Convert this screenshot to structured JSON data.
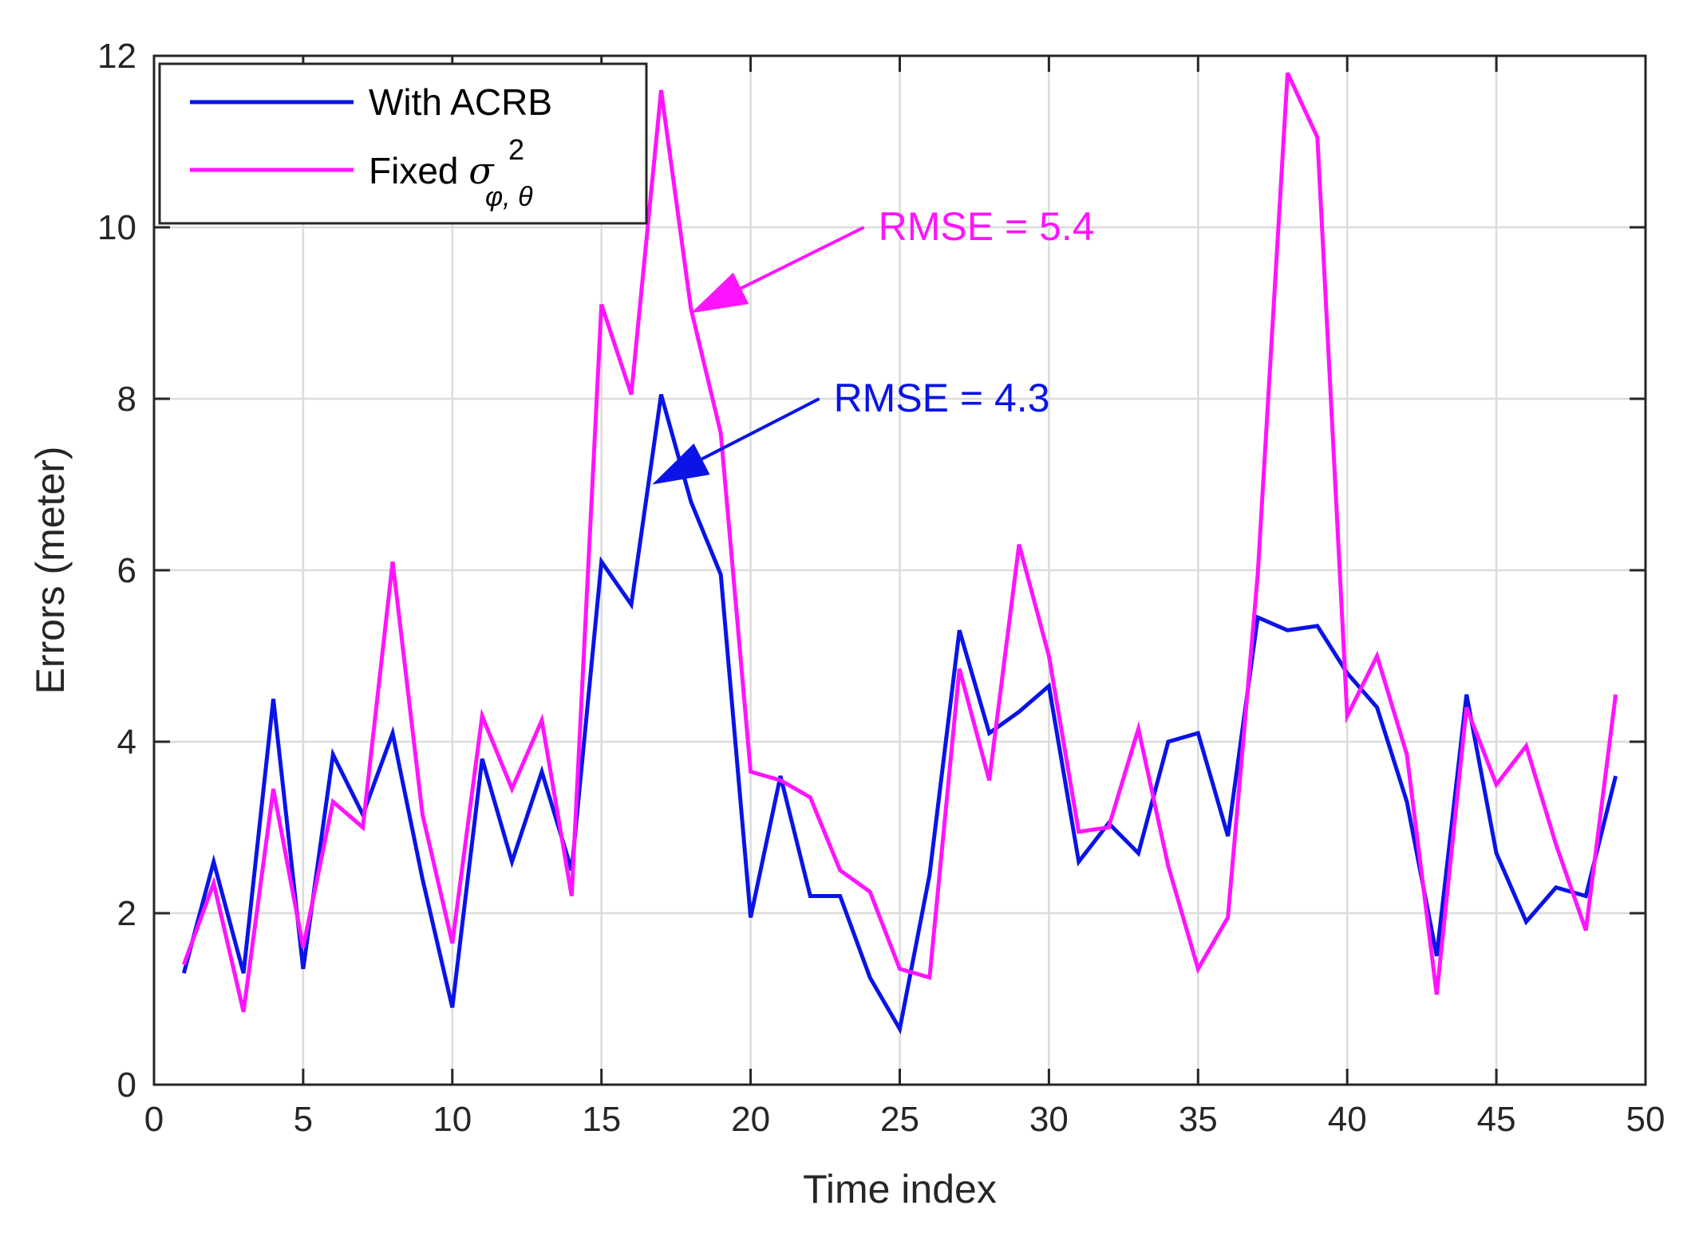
{
  "chart_data": {
    "type": "line",
    "title": "",
    "xlabel": "Time index",
    "ylabel": "Errors (meter)",
    "xlim": [
      0,
      50
    ],
    "ylim": [
      0,
      12
    ],
    "xticks": [
      0,
      5,
      10,
      15,
      20,
      25,
      30,
      35,
      40,
      45,
      50
    ],
    "yticks": [
      0,
      2,
      4,
      6,
      8,
      10,
      12
    ],
    "grid": true,
    "legend_position": "top-left",
    "x": [
      1,
      2,
      3,
      4,
      5,
      6,
      7,
      8,
      9,
      10,
      11,
      12,
      13,
      14,
      15,
      16,
      17,
      18,
      19,
      20,
      21,
      22,
      23,
      24,
      25,
      26,
      27,
      28,
      29,
      30,
      31,
      32,
      33,
      34,
      35,
      36,
      37,
      38,
      39,
      40,
      41,
      42,
      43,
      44,
      45,
      46,
      47,
      48,
      49
    ],
    "series": [
      {
        "name": "With ACRB",
        "color": "#0a14e6",
        "values": [
          1.3,
          2.6,
          1.3,
          4.5,
          1.35,
          3.85,
          3.15,
          4.1,
          2.4,
          0.9,
          3.8,
          2.6,
          3.65,
          2.5,
          6.1,
          5.6,
          8.05,
          6.8,
          5.95,
          1.95,
          3.6,
          2.2,
          2.2,
          1.25,
          0.65,
          2.45,
          5.3,
          4.1,
          4.35,
          4.65,
          2.6,
          3.05,
          2.7,
          4.0,
          4.1,
          2.9,
          5.45,
          5.3,
          5.35,
          4.8,
          4.4,
          3.3,
          1.5,
          4.55,
          2.7,
          1.9,
          2.3,
          2.2,
          3.6
        ]
      },
      {
        "name": "Fixed σ²_{φ, θ}",
        "color": "#ff14ff",
        "values": [
          1.4,
          2.35,
          0.85,
          3.45,
          1.6,
          3.3,
          3.0,
          6.1,
          3.15,
          1.65,
          4.3,
          3.45,
          4.25,
          2.2,
          9.1,
          8.05,
          11.6,
          9.05,
          7.6,
          3.65,
          3.55,
          3.35,
          2.5,
          2.25,
          1.35,
          1.25,
          4.85,
          3.55,
          6.3,
          5.0,
          2.95,
          3.0,
          4.15,
          2.55,
          1.35,
          1.95,
          5.95,
          11.8,
          11.05,
          4.3,
          5.0,
          3.85,
          1.05,
          4.4,
          3.5,
          3.95,
          2.8,
          1.8,
          4.55
        ]
      }
    ],
    "legend_labels": {
      "series1": "With ACRB",
      "series2_prefix": "Fixed ",
      "series2_symbol": "σ",
      "series2_superscript": "2",
      "series2_subscript": "φ, θ"
    },
    "annotations": [
      {
        "text": "RMSE = 5.4",
        "color": "#ff14ff",
        "series": "Fixed",
        "arrow_to_x": 18,
        "arrow_to_y": 9.0,
        "arrow_from_x": 23.8,
        "arrow_from_y": 10.0
      },
      {
        "text": "RMSE = 4.3",
        "color": "#0a14e6",
        "series": "With ACRB",
        "arrow_to_x": 16.7,
        "arrow_to_y": 7.0,
        "arrow_from_x": 22.3,
        "arrow_from_y": 8.0
      }
    ]
  }
}
